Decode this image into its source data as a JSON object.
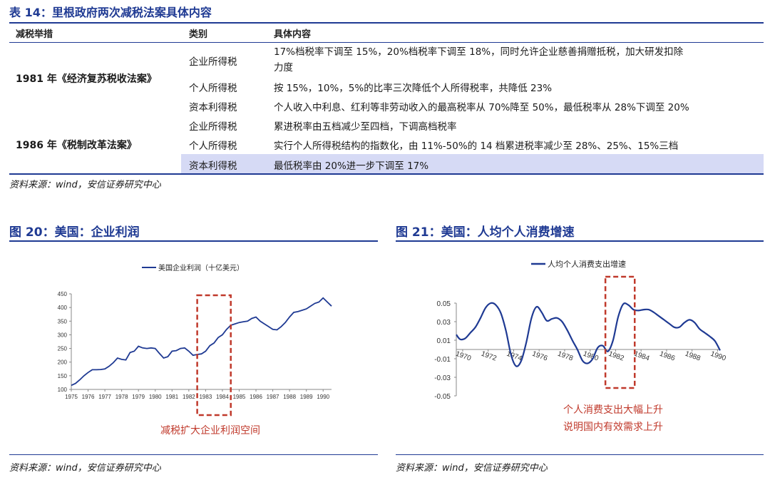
{
  "table": {
    "title": "表 14：里根政府两次减税法案具体内容",
    "headers": [
      "减税举措",
      "类别",
      "具体内容"
    ],
    "laws": [
      "1981 年《经济复苏税收法案》",
      "1986 年《税制改革法案》"
    ],
    "rows": [
      {
        "category": "企业所得税",
        "content_line1": "17%档税率下调至 15%，20%档税率下调至 18%，同时允许企业慈善捐赠抵税，加大研发扣除",
        "content_line2": "力度"
      },
      {
        "category": "个人所得税",
        "content": "按 15%，10%，5%的比率三次降低个人所得税率，共降低 23%"
      },
      {
        "category": "资本利得税",
        "content": "个人收入中利息、红利等非劳动收入的最高税率从 70%降至 50%，最低税率从 28%下调至 20%"
      },
      {
        "category": "企业所得税",
        "content": "累进税率由五档减少至四档，下调高档税率"
      },
      {
        "category": "个人所得税",
        "content": "实行个人所得税结构的指数化，由 11%-50%的 14 档累进税率减少至 28%、25%、15%三档"
      },
      {
        "category": "资本利得税",
        "content": "最低税率由 20%进一步下调至 17%"
      }
    ],
    "source": "资料来源：wind，安信证券研究中心"
  },
  "figures": {
    "fig20_title": "图 20：美国：企业利润",
    "fig21_title": "图 21：美国：人均个人消费增速",
    "fig20_source": "资料来源：wind，安信证券研究中心",
    "fig21_source": "资料来源：wind，安信证券研究中心",
    "fig20_annotation": "减税扩大企业利润空间",
    "fig21_annotation_line1": "个人消费支出大幅上升",
    "fig21_annotation_line2": "说明国内有效需求上升"
  },
  "colors": {
    "accent": "#1f3a93",
    "line": "#1f3a93",
    "annotation": "#c0392b",
    "highlight": "#d6daf5"
  },
  "chart_data": [
    {
      "type": "line",
      "title": "",
      "series": [
        {
          "name": "美国企业利润（十亿美元）",
          "x": [
            1975.0,
            1975.25,
            1975.5,
            1975.75,
            1976.0,
            1976.25,
            1976.5,
            1976.75,
            1977.0,
            1977.25,
            1977.5,
            1977.75,
            1978.0,
            1978.25,
            1978.5,
            1978.75,
            1979.0,
            1979.25,
            1979.5,
            1979.75,
            1980.0,
            1980.25,
            1980.5,
            1980.75,
            1981.0,
            1981.25,
            1981.5,
            1981.75,
            1982.0,
            1982.25,
            1982.5,
            1982.75,
            1983.0,
            1983.25,
            1983.5,
            1983.75,
            1984.0,
            1984.25,
            1984.5,
            1984.75,
            1985.0,
            1985.25,
            1985.5,
            1985.75,
            1986.0,
            1986.25,
            1986.5,
            1986.75,
            1987.0,
            1987.25,
            1987.5,
            1987.75,
            1988.0,
            1988.25,
            1988.5,
            1988.75,
            1989.0,
            1989.25,
            1989.5,
            1989.75,
            1990.0,
            1990.25,
            1990.5
          ],
          "values": [
            115,
            122,
            135,
            150,
            162,
            172,
            172,
            173,
            175,
            185,
            198,
            215,
            210,
            208,
            235,
            240,
            258,
            252,
            250,
            252,
            250,
            232,
            215,
            220,
            240,
            242,
            250,
            252,
            240,
            225,
            228,
            230,
            240,
            260,
            270,
            290,
            300,
            320,
            335,
            340,
            345,
            348,
            350,
            360,
            365,
            350,
            340,
            330,
            320,
            318,
            330,
            345,
            365,
            382,
            385,
            390,
            395,
            405,
            415,
            420,
            435,
            420,
            405
          ]
        }
      ],
      "xlabel": "",
      "ylabel": "",
      "xlim": [
        1975,
        1990.5
      ],
      "ylim": [
        100,
        450
      ],
      "yticks": [
        100,
        150,
        200,
        250,
        300,
        350,
        400,
        450
      ],
      "xticks": [
        "1975",
        "1976",
        "1977",
        "1978",
        "1979",
        "1980",
        "1981",
        "1982",
        "1983",
        "1984",
        "1985",
        "1986",
        "1987",
        "1988",
        "1989",
        "1990"
      ],
      "legend": "top-center",
      "grid": false
    },
    {
      "type": "line",
      "title": "",
      "series": [
        {
          "name": "人均个人消费支出增速",
          "x": [
            1969.5,
            1969.8,
            1970.2,
            1970.6,
            1971.0,
            1971.4,
            1971.8,
            1972.2,
            1972.6,
            1973.0,
            1973.4,
            1973.8,
            1974.2,
            1974.6,
            1975.0,
            1975.4,
            1975.8,
            1976.2,
            1976.6,
            1977.0,
            1977.4,
            1977.8,
            1978.2,
            1978.6,
            1979.0,
            1979.4,
            1979.8,
            1980.2,
            1980.6,
            1981.0,
            1981.4,
            1981.8,
            1982.2,
            1982.6,
            1983.0,
            1983.4,
            1983.8,
            1984.2,
            1984.6,
            1985.0,
            1985.4,
            1985.8,
            1986.2,
            1986.6,
            1987.0,
            1987.4,
            1987.8,
            1988.2,
            1988.6,
            1989.0,
            1989.4,
            1989.8,
            1990.2
          ],
          "values": [
            0.016,
            0.011,
            0.012,
            0.018,
            0.024,
            0.034,
            0.045,
            0.05,
            0.048,
            0.039,
            0.02,
            -0.006,
            -0.018,
            -0.012,
            0.008,
            0.034,
            0.046,
            0.04,
            0.031,
            0.033,
            0.034,
            0.03,
            0.021,
            0.01,
            0.0,
            -0.012,
            -0.015,
            -0.01,
            0.002,
            0.004,
            -0.002,
            0.01,
            0.035,
            0.049,
            0.048,
            0.043,
            0.042,
            0.043,
            0.043,
            0.04,
            0.036,
            0.032,
            0.028,
            0.024,
            0.024,
            0.029,
            0.032,
            0.029,
            0.022,
            0.018,
            0.014,
            0.009,
            -0.001
          ]
        }
      ],
      "xlabel": "",
      "ylabel": "",
      "xlim": [
        1969.5,
        1990.2
      ],
      "ylim": [
        -0.05,
        0.05
      ],
      "yticks": [
        "-0.05",
        "-0.03",
        "-0.01",
        "0.01",
        "0.03",
        "0.05"
      ],
      "xticks": [
        "1970",
        "1972",
        "1974",
        "1976",
        "1978",
        "1980",
        "1982",
        "1984",
        "1986",
        "1988",
        "1990"
      ],
      "legend": "top-center",
      "grid": false
    }
  ]
}
